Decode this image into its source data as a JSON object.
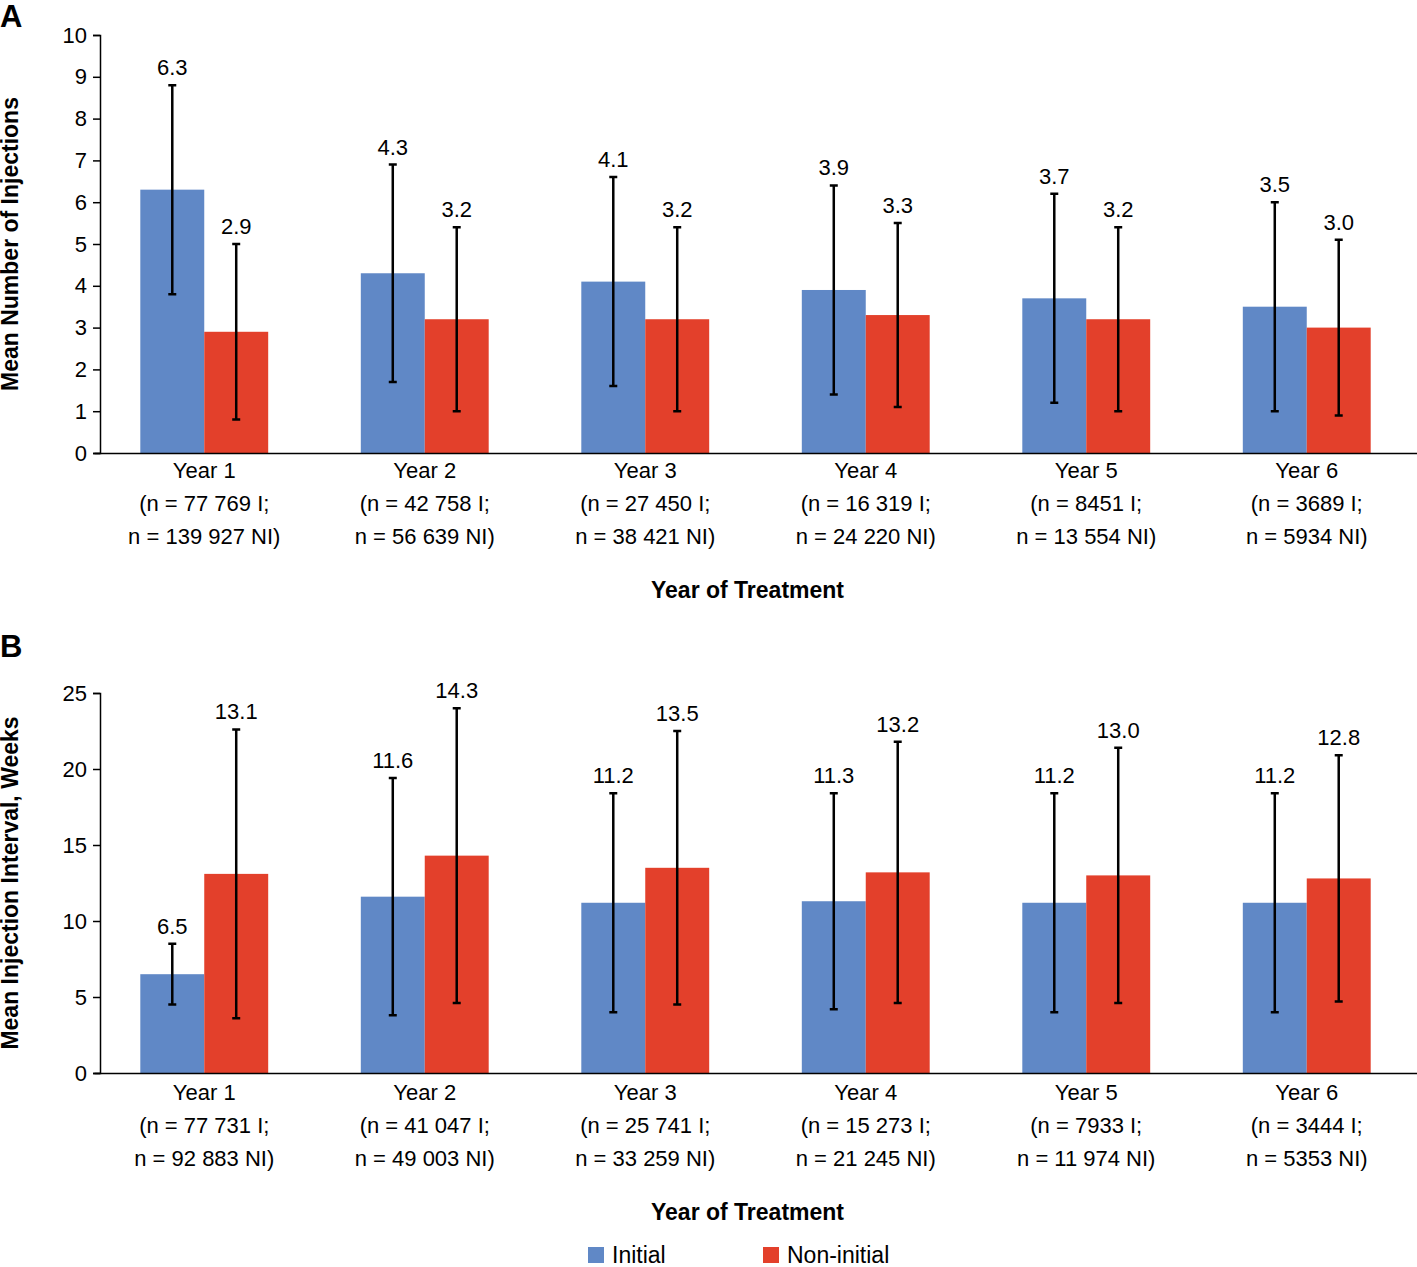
{
  "chart_data": [
    {
      "type": "bar",
      "title": "A",
      "x_label": "Year of Treatment",
      "y_label": "Mean Number of Injections",
      "categories": [
        "Year 1\n(n = 77 769 I;\nn = 139 927 NI)",
        "Year 2\n(n = 42 758 I;\nn = 56 639 NI)",
        "Year 3\n(n = 27 450 I;\nn = 38 421 NI)",
        "Year 4\n(n = 16 319 I;\nn = 24 220 NI)",
        "Year 5\n(n = 8451 I;\nn = 13 554 NI)",
        "Year 6\n(n = 3689 I;\nn = 5934 NI)"
      ],
      "ylim": [
        0,
        10
      ],
      "yticks": [
        0,
        1,
        2,
        3,
        4,
        5,
        6,
        7,
        8,
        9,
        10
      ],
      "data_labels": true,
      "series": [
        {
          "name": "Initial",
          "color": "#6088c6",
          "values": [
            6.3,
            4.3,
            4.1,
            3.9,
            3.7,
            3.5
          ],
          "value_labels": [
            "6.3",
            "4.3",
            "4.1",
            "3.9",
            "3.7",
            "3.5"
          ],
          "errors": [
            2.5,
            2.6,
            2.5,
            2.5,
            2.5,
            2.5
          ]
        },
        {
          "name": "Non-initial",
          "color": "#e3402b",
          "values": [
            2.9,
            3.2,
            3.2,
            3.3,
            3.2,
            3.0
          ],
          "value_labels": [
            "2.9",
            "3.2",
            "3.2",
            "3.3",
            "3.2",
            "3.0"
          ],
          "errors": [
            2.1,
            2.2,
            2.2,
            2.2,
            2.2,
            2.1
          ]
        }
      ]
    },
    {
      "type": "bar",
      "title": "B",
      "x_label": "Year of Treatment",
      "y_label": "Mean Injection Interval, Weeks",
      "categories": [
        "Year 1\n(n = 77 731 I;\nn = 92 883 NI)",
        "Year 2\n(n = 41 047 I;\nn = 49 003 NI)",
        "Year 3\n(n = 25 741 I;\nn = 33 259 NI)",
        "Year 4\n(n = 15 273 I;\nn = 21 245 NI)",
        "Year 5\n(n = 7933 I;\nn = 11 974 NI)",
        "Year 6\n(n = 3444 I;\nn = 5353 NI)"
      ],
      "ylim": [
        0,
        25
      ],
      "yticks": [
        0,
        5,
        10,
        15,
        20,
        25
      ],
      "data_labels": true,
      "legend": "bottom",
      "series": [
        {
          "name": "Initial",
          "color": "#6088c6",
          "values": [
            6.5,
            11.6,
            11.2,
            11.3,
            11.2,
            11.2
          ],
          "value_labels": [
            "6.5",
            "11.6",
            "11.2",
            "11.3",
            "11.2",
            "11.2"
          ],
          "errors": [
            2.0,
            7.8,
            7.2,
            7.1,
            7.2,
            7.2
          ]
        },
        {
          "name": "Non-initial",
          "color": "#e3402b",
          "values": [
            13.1,
            14.3,
            13.5,
            13.2,
            13.0,
            12.8
          ],
          "value_labels": [
            "13.1",
            "14.3",
            "13.5",
            "13.2",
            "13.0",
            "12.8"
          ],
          "errors": [
            9.5,
            9.7,
            9.0,
            8.6,
            8.4,
            8.1
          ]
        }
      ]
    }
  ]
}
